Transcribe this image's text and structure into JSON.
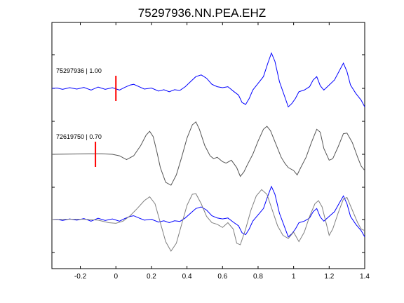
{
  "chart_data": {
    "type": "line",
    "title": "75297936.NN.PEA.EHZ",
    "xlim": [
      -0.36,
      1.4
    ],
    "xticks": [
      -0.2,
      0,
      0.2,
      0.4,
      0.6,
      0.8,
      1,
      1.2,
      1.4
    ],
    "xtick_labels": [
      "-0.2",
      "0",
      "0.2",
      "0.4",
      "0.6",
      "0.8",
      "1",
      "1.2",
      "1.4"
    ],
    "xlabel": "",
    "ylabel": "",
    "grid": false,
    "yticks_count": 7,
    "traces": [
      {
        "label": "75297936 | 1.00",
        "color": "#0000ff",
        "baseline": 0,
        "pick_time": 0.0,
        "points": [
          [
            -0.36,
            0
          ],
          [
            -0.33,
            0.01
          ],
          [
            -0.3,
            -0.03
          ],
          [
            -0.26,
            0.02
          ],
          [
            -0.22,
            -0.02
          ],
          [
            -0.18,
            0.03
          ],
          [
            -0.14,
            -0.05
          ],
          [
            -0.1,
            0.04
          ],
          [
            -0.06,
            -0.03
          ],
          [
            -0.02,
            0.02
          ],
          [
            0.02,
            -0.05
          ],
          [
            0.05,
            0.03
          ],
          [
            0.08,
            0.1
          ],
          [
            0.1,
            0.12
          ],
          [
            0.13,
            0.05
          ],
          [
            0.16,
            -0.02
          ],
          [
            0.2,
            0.01
          ],
          [
            0.24,
            -0.08
          ],
          [
            0.27,
            -0.04
          ],
          [
            0.3,
            -0.1
          ],
          [
            0.33,
            -0.04
          ],
          [
            0.36,
            -0.06
          ],
          [
            0.39,
            0.05
          ],
          [
            0.42,
            0.2
          ],
          [
            0.45,
            0.35
          ],
          [
            0.48,
            0.4
          ],
          [
            0.51,
            0.3
          ],
          [
            0.54,
            0.12
          ],
          [
            0.57,
            0.05
          ],
          [
            0.6,
            0.02
          ],
          [
            0.63,
            0.05
          ],
          [
            0.66,
            -0.08
          ],
          [
            0.69,
            -0.2
          ],
          [
            0.71,
            -0.42
          ],
          [
            0.73,
            -0.48
          ],
          [
            0.75,
            -0.3
          ],
          [
            0.77,
            -0.05
          ],
          [
            0.8,
            0.15
          ],
          [
            0.83,
            0.35
          ],
          [
            0.855,
            0.75
          ],
          [
            0.875,
            1.05
          ],
          [
            0.895,
            0.8
          ],
          [
            0.92,
            0.2
          ],
          [
            0.95,
            -0.25
          ],
          [
            0.97,
            -0.55
          ],
          [
            0.99,
            -0.45
          ],
          [
            1.01,
            -0.3
          ],
          [
            1.03,
            -0.1
          ],
          [
            1.06,
            -0.05
          ],
          [
            1.09,
            0.05
          ],
          [
            1.11,
            0.25
          ],
          [
            1.13,
            0.35
          ],
          [
            1.15,
            0.08
          ],
          [
            1.17,
            -0.05
          ],
          [
            1.2,
            0.1
          ],
          [
            1.23,
            0.25
          ],
          [
            1.26,
            0.55
          ],
          [
            1.28,
            0.75
          ],
          [
            1.3,
            0.5
          ],
          [
            1.32,
            0.1
          ],
          [
            1.35,
            -0.15
          ],
          [
            1.38,
            -0.35
          ],
          [
            1.4,
            -0.55
          ]
        ]
      },
      {
        "label": "72619750 | 0.70",
        "color": "#555555",
        "baseline": -1,
        "pick_time": -0.115,
        "points": [
          [
            -0.36,
            0
          ],
          [
            -0.25,
            0.01
          ],
          [
            -0.15,
            0.02
          ],
          [
            -0.08,
            0.02
          ],
          [
            -0.02,
            0.0
          ],
          [
            0.02,
            -0.05
          ],
          [
            0.06,
            -0.18
          ],
          [
            0.1,
            -0.05
          ],
          [
            0.14,
            0.3
          ],
          [
            0.17,
            0.65
          ],
          [
            0.19,
            0.78
          ],
          [
            0.21,
            0.6
          ],
          [
            0.23,
            0.1
          ],
          [
            0.25,
            -0.45
          ],
          [
            0.28,
            -0.95
          ],
          [
            0.31,
            -1.05
          ],
          [
            0.34,
            -0.7
          ],
          [
            0.37,
            -0.1
          ],
          [
            0.4,
            0.55
          ],
          [
            0.43,
            1.0
          ],
          [
            0.45,
            1.1
          ],
          [
            0.47,
            0.85
          ],
          [
            0.5,
            0.3
          ],
          [
            0.53,
            -0.05
          ],
          [
            0.55,
            -0.15
          ],
          [
            0.57,
            -0.1
          ],
          [
            0.6,
            -0.25
          ],
          [
            0.62,
            -0.3
          ],
          [
            0.65,
            -0.2
          ],
          [
            0.68,
            -0.45
          ],
          [
            0.7,
            -0.75
          ],
          [
            0.72,
            -0.6
          ],
          [
            0.74,
            -0.35
          ],
          [
            0.77,
            0.0
          ],
          [
            0.8,
            0.45
          ],
          [
            0.83,
            0.85
          ],
          [
            0.85,
            0.95
          ],
          [
            0.87,
            0.8
          ],
          [
            0.9,
            0.35
          ],
          [
            0.93,
            -0.1
          ],
          [
            0.95,
            -0.3
          ],
          [
            0.97,
            -0.45
          ],
          [
            1.0,
            -0.55
          ],
          [
            1.02,
            -0.7
          ],
          [
            1.04,
            -0.45
          ],
          [
            1.07,
            -0.1
          ],
          [
            1.1,
            0.4
          ],
          [
            1.13,
            0.85
          ],
          [
            1.15,
            0.75
          ],
          [
            1.17,
            0.2
          ],
          [
            1.2,
            -0.2
          ],
          [
            1.22,
            -0.15
          ],
          [
            1.25,
            0.25
          ],
          [
            1.28,
            0.7
          ],
          [
            1.3,
            0.72
          ],
          [
            1.33,
            0.4
          ],
          [
            1.36,
            -0.1
          ],
          [
            1.38,
            -0.4
          ],
          [
            1.4,
            -0.55
          ]
        ]
      },
      {
        "label": "",
        "color": "#0000ff",
        "baseline": -2,
        "pick_time": null,
        "points": [
          [
            -0.36,
            0
          ],
          [
            -0.33,
            0.01
          ],
          [
            -0.3,
            -0.03
          ],
          [
            -0.26,
            0.02
          ],
          [
            -0.22,
            -0.02
          ],
          [
            -0.18,
            0.03
          ],
          [
            -0.14,
            -0.05
          ],
          [
            -0.1,
            0.04
          ],
          [
            -0.06,
            -0.03
          ],
          [
            -0.02,
            0.02
          ],
          [
            0.02,
            -0.05
          ],
          [
            0.05,
            0.03
          ],
          [
            0.08,
            0.1
          ],
          [
            0.1,
            0.12
          ],
          [
            0.13,
            0.05
          ],
          [
            0.16,
            -0.02
          ],
          [
            0.2,
            0.01
          ],
          [
            0.24,
            -0.08
          ],
          [
            0.27,
            -0.04
          ],
          [
            0.3,
            -0.1
          ],
          [
            0.33,
            -0.04
          ],
          [
            0.36,
            -0.06
          ],
          [
            0.39,
            0.05
          ],
          [
            0.42,
            0.2
          ],
          [
            0.45,
            0.35
          ],
          [
            0.48,
            0.4
          ],
          [
            0.51,
            0.3
          ],
          [
            0.54,
            0.12
          ],
          [
            0.57,
            0.05
          ],
          [
            0.6,
            0.02
          ],
          [
            0.63,
            0.05
          ],
          [
            0.66,
            -0.08
          ],
          [
            0.69,
            -0.2
          ],
          [
            0.71,
            -0.42
          ],
          [
            0.73,
            -0.48
          ],
          [
            0.75,
            -0.3
          ],
          [
            0.77,
            -0.05
          ],
          [
            0.8,
            0.15
          ],
          [
            0.83,
            0.35
          ],
          [
            0.855,
            0.75
          ],
          [
            0.875,
            1.05
          ],
          [
            0.895,
            0.8
          ],
          [
            0.92,
            0.2
          ],
          [
            0.95,
            -0.25
          ],
          [
            0.97,
            -0.55
          ],
          [
            0.99,
            -0.45
          ],
          [
            1.01,
            -0.3
          ],
          [
            1.03,
            -0.1
          ],
          [
            1.06,
            -0.05
          ],
          [
            1.09,
            0.05
          ],
          [
            1.11,
            0.25
          ],
          [
            1.13,
            0.35
          ],
          [
            1.15,
            0.08
          ],
          [
            1.17,
            -0.05
          ],
          [
            1.2,
            0.1
          ],
          [
            1.23,
            0.25
          ],
          [
            1.26,
            0.55
          ],
          [
            1.28,
            0.75
          ],
          [
            1.3,
            0.5
          ],
          [
            1.32,
            0.1
          ],
          [
            1.35,
            -0.15
          ],
          [
            1.38,
            -0.35
          ],
          [
            1.4,
            -0.55
          ]
        ]
      },
      {
        "label": "",
        "color": "#808080",
        "baseline": -2,
        "pick_time": null,
        "points": [
          [
            -0.36,
            0
          ],
          [
            -0.28,
            0.01
          ],
          [
            -0.18,
            0.01
          ],
          [
            -0.1,
            -0.02
          ],
          [
            -0.04,
            -0.1
          ],
          [
            0.0,
            -0.12
          ],
          [
            0.04,
            -0.05
          ],
          [
            0.08,
            0.12
          ],
          [
            0.12,
            0.35
          ],
          [
            0.16,
            0.6
          ],
          [
            0.19,
            0.72
          ],
          [
            0.22,
            0.5
          ],
          [
            0.25,
            -0.1
          ],
          [
            0.28,
            -0.7
          ],
          [
            0.31,
            -1.0
          ],
          [
            0.34,
            -0.75
          ],
          [
            0.37,
            -0.15
          ],
          [
            0.4,
            0.45
          ],
          [
            0.43,
            0.8
          ],
          [
            0.45,
            0.82
          ],
          [
            0.48,
            0.5
          ],
          [
            0.51,
            0.1
          ],
          [
            0.54,
            -0.1
          ],
          [
            0.57,
            -0.15
          ],
          [
            0.6,
            -0.25
          ],
          [
            0.63,
            -0.1
          ],
          [
            0.66,
            -0.3
          ],
          [
            0.68,
            -0.75
          ],
          [
            0.7,
            -0.8
          ],
          [
            0.73,
            -0.3
          ],
          [
            0.76,
            0.3
          ],
          [
            0.79,
            0.75
          ],
          [
            0.82,
            0.95
          ],
          [
            0.85,
            0.8
          ],
          [
            0.88,
            0.3
          ],
          [
            0.91,
            -0.2
          ],
          [
            0.94,
            -0.5
          ],
          [
            0.97,
            -0.6
          ],
          [
            1.0,
            -0.4
          ],
          [
            1.03,
            -0.7
          ],
          [
            1.06,
            -0.4
          ],
          [
            1.09,
            0.1
          ],
          [
            1.12,
            0.5
          ],
          [
            1.14,
            0.6
          ],
          [
            1.16,
            0.4
          ],
          [
            1.18,
            -0.05
          ],
          [
            1.2,
            -0.5
          ],
          [
            1.22,
            -0.3
          ],
          [
            1.25,
            0.2
          ],
          [
            1.28,
            0.65
          ],
          [
            1.3,
            0.7
          ],
          [
            1.33,
            0.3
          ],
          [
            1.36,
            -0.1
          ],
          [
            1.38,
            -0.3
          ],
          [
            1.4,
            -0.35
          ]
        ]
      }
    ]
  }
}
